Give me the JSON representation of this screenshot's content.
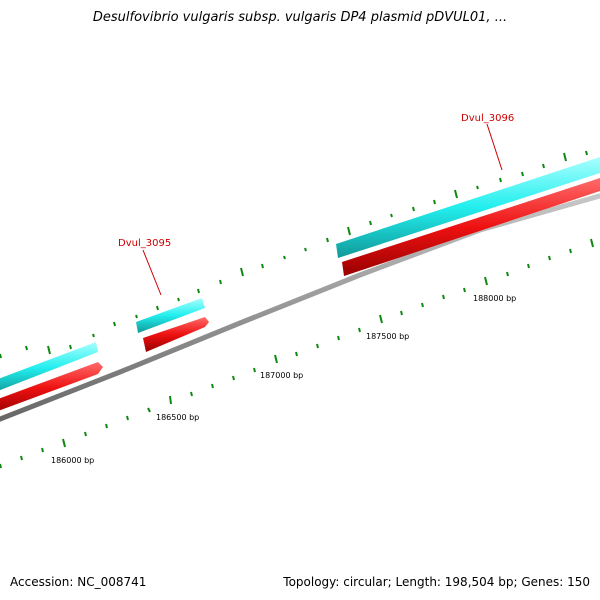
{
  "title": "Desulfovibrio vulgaris subsp. vulgaris DP4 plasmid pDVUL01, ...",
  "footer": {
    "accession": "Accession: NC_008741",
    "summary": "Topology: circular; Length: 198,504 bp; Genes: 150"
  },
  "colors": {
    "forward_strand": "#22eeee",
    "reverse_strand": "#ee1111",
    "backbone": "#888888",
    "ticks": "#118811",
    "gene_label": "#cc0000"
  },
  "genes": [
    {
      "label": "Dvul_3095"
    },
    {
      "label": "Dvul_3096"
    }
  ],
  "ruler_labels": [
    "186000 bp",
    "186500 bp",
    "187000 bp",
    "187500 bp",
    "188000 bp"
  ]
}
